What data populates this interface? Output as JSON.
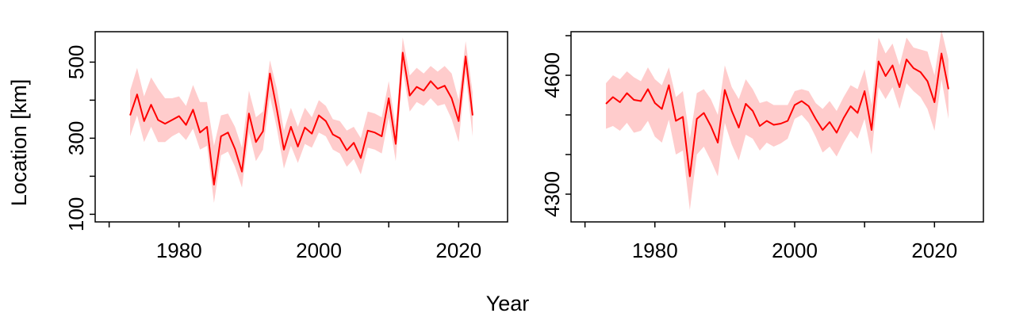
{
  "figure": {
    "xlabel": "Year",
    "ylabel": "Location [km]"
  },
  "colors": {
    "line": "#ff0000",
    "band": "#ffcccc",
    "axis": "#000000"
  },
  "chart_data": [
    {
      "type": "line",
      "xlim": [
        1968,
        2027
      ],
      "ylim": [
        80,
        580
      ],
      "xticks": [
        1970,
        1980,
        1990,
        2000,
        2010,
        2020
      ],
      "xtick_labels": [
        "",
        "1980",
        "",
        "2000",
        "",
        "2020"
      ],
      "yticks": [
        100,
        200,
        300,
        400,
        500
      ],
      "ytick_labels": [
        "100",
        "",
        "300",
        "",
        "500"
      ],
      "x": [
        1973,
        1974,
        1975,
        1976,
        1977,
        1978,
        1979,
        1980,
        1981,
        1982,
        1983,
        1984,
        1985,
        1986,
        1987,
        1988,
        1989,
        1990,
        1991,
        1992,
        1993,
        1994,
        1995,
        1996,
        1997,
        1998,
        1999,
        2000,
        2001,
        2002,
        2003,
        2004,
        2005,
        2006,
        2007,
        2008,
        2009,
        2010,
        2011,
        2012,
        2013,
        2014,
        2015,
        2016,
        2017,
        2018,
        2019,
        2020,
        2021,
        2022
      ],
      "series": [
        {
          "values": [
            360,
            415,
            345,
            388,
            348,
            338,
            348,
            358,
            335,
            375,
            315,
            330,
            178,
            305,
            315,
            272,
            212,
            365,
            290,
            318,
            470,
            375,
            270,
            330,
            278,
            328,
            312,
            360,
            345,
            310,
            300,
            268,
            288,
            248,
            320,
            315,
            305,
            405,
            285,
            525,
            412,
            435,
            425,
            450,
            430,
            438,
            405,
            345,
            515,
            360
          ],
          "lower": [
            305,
            360,
            290,
            330,
            290,
            290,
            305,
            315,
            295,
            325,
            270,
            280,
            130,
            255,
            265,
            225,
            170,
            315,
            240,
            270,
            410,
            325,
            220,
            280,
            235,
            285,
            275,
            315,
            305,
            270,
            260,
            225,
            245,
            205,
            275,
            270,
            260,
            355,
            240,
            480,
            370,
            395,
            385,
            405,
            385,
            390,
            350,
            290,
            470,
            305
          ],
          "upper": [
            425,
            485,
            410,
            460,
            430,
            405,
            405,
            410,
            385,
            440,
            395,
            395,
            280,
            360,
            365,
            330,
            275,
            425,
            355,
            370,
            505,
            430,
            320,
            380,
            330,
            380,
            355,
            400,
            385,
            350,
            345,
            320,
            330,
            300,
            370,
            365,
            355,
            450,
            330,
            565,
            465,
            485,
            470,
            490,
            475,
            490,
            470,
            400,
            555,
            420
          ]
        }
      ]
    },
    {
      "type": "line",
      "xlim": [
        1968,
        2027
      ],
      "ylim": [
        4230,
        4710
      ],
      "xticks": [
        1970,
        1980,
        1990,
        2000,
        2010,
        2020
      ],
      "xtick_labels": [
        "",
        "1980",
        "",
        "2000",
        "",
        "2020"
      ],
      "yticks": [
        4300,
        4400,
        4500,
        4600,
        4700
      ],
      "ytick_labels": [
        "4300",
        "",
        "",
        "4600",
        ""
      ],
      "x": [
        1973,
        1974,
        1975,
        1976,
        1977,
        1978,
        1979,
        1980,
        1981,
        1982,
        1983,
        1984,
        1985,
        1986,
        1987,
        1988,
        1989,
        1990,
        1991,
        1992,
        1993,
        1994,
        1995,
        1996,
        1997,
        1998,
        1999,
        2000,
        2001,
        2002,
        2003,
        2004,
        2005,
        2006,
        2007,
        2008,
        2009,
        2010,
        2011,
        2012,
        2013,
        2014,
        2015,
        2016,
        2017,
        2018,
        2019,
        2020,
        2021,
        2022
      ],
      "series": [
        {
          "values": [
            4528,
            4545,
            4532,
            4555,
            4538,
            4535,
            4565,
            4530,
            4515,
            4575,
            4485,
            4495,
            4345,
            4490,
            4505,
            4472,
            4430,
            4563,
            4510,
            4468,
            4528,
            4510,
            4472,
            4485,
            4475,
            4478,
            4485,
            4525,
            4535,
            4522,
            4490,
            4462,
            4482,
            4455,
            4492,
            4522,
            4505,
            4560,
            4462,
            4635,
            4598,
            4625,
            4570,
            4640,
            4618,
            4608,
            4585,
            4532,
            4655,
            4565
          ],
          "lower": [
            4465,
            4472,
            4460,
            4480,
            4455,
            4460,
            4485,
            4445,
            4430,
            4488,
            4400,
            4410,
            4260,
            4400,
            4420,
            4385,
            4345,
            4480,
            4425,
            4385,
            4450,
            4440,
            4410,
            4430,
            4420,
            4428,
            4440,
            4490,
            4500,
            4480,
            4445,
            4405,
            4420,
            4395,
            4430,
            4460,
            4440,
            4490,
            4400,
            4570,
            4540,
            4570,
            4515,
            4580,
            4560,
            4545,
            4515,
            4460,
            4590,
            4490
          ],
          "upper": [
            4580,
            4600,
            4590,
            4610,
            4595,
            4585,
            4620,
            4590,
            4575,
            4620,
            4545,
            4560,
            4440,
            4555,
            4565,
            4540,
            4500,
            4625,
            4570,
            4540,
            4590,
            4565,
            4530,
            4535,
            4525,
            4525,
            4525,
            4560,
            4565,
            4560,
            4530,
            4515,
            4535,
            4510,
            4545,
            4575,
            4565,
            4615,
            4525,
            4695,
            4655,
            4680,
            4625,
            4695,
            4670,
            4665,
            4660,
            4600,
            4715,
            4640
          ]
        }
      ]
    }
  ]
}
